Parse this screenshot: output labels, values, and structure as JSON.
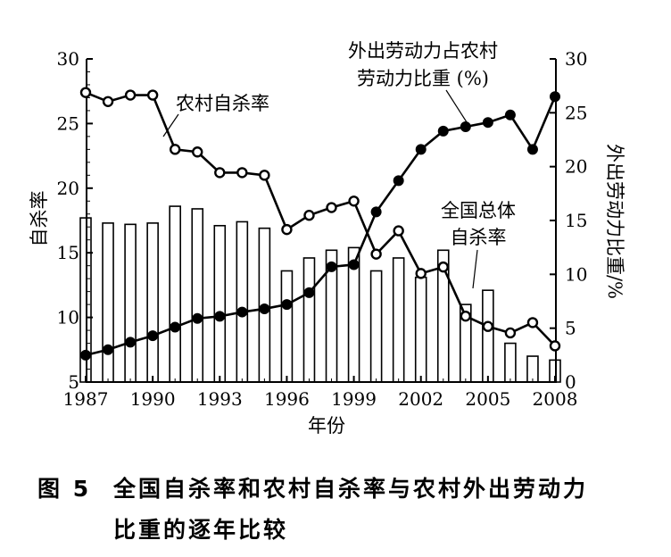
{
  "chart_data": {
    "type": "bar+line",
    "x": [
      1987,
      1988,
      1989,
      1990,
      1991,
      1992,
      1993,
      1994,
      1995,
      1996,
      1997,
      1998,
      1999,
      2000,
      2001,
      2002,
      2003,
      2004,
      2005,
      2006,
      2007,
      2008
    ],
    "x_ticks": [
      "1987",
      "1990",
      "1993",
      "1996",
      "1999",
      "2002",
      "2005",
      "2008"
    ],
    "xlabel": "年份",
    "ylabel_left": "自杀率",
    "ylabel_right": "外出劳动力比重/%",
    "ylim_left": [
      5,
      30
    ],
    "ylim_right": [
      0,
      30
    ],
    "yticks_left": [
      "5",
      "10",
      "15",
      "20",
      "25",
      "30"
    ],
    "yticks_right": [
      "0",
      "5",
      "10",
      "15",
      "20",
      "25",
      "30"
    ],
    "series": [
      {
        "name": "全国总体自杀率",
        "label_lines": [
          "全国总体",
          "自杀率"
        ],
        "kind": "bar",
        "axis": "left",
        "values": [
          17.7,
          17.3,
          17.2,
          17.3,
          18.6,
          18.4,
          17.1,
          17.4,
          16.9,
          13.6,
          14.6,
          15.2,
          15.4,
          13.6,
          14.6,
          13.1,
          15.2,
          11.0,
          12.1,
          8.0,
          7.0,
          6.7
        ]
      },
      {
        "name": "农村自杀率",
        "kind": "line",
        "marker": "open-circle",
        "axis": "left",
        "values": [
          27.4,
          26.7,
          27.2,
          27.2,
          23.0,
          22.8,
          21.2,
          21.2,
          21.0,
          16.8,
          17.9,
          18.5,
          19.0,
          14.9,
          16.7,
          13.4,
          13.9,
          10.1,
          9.3,
          8.8,
          9.6,
          7.8
        ]
      },
      {
        "name": "外出劳动力占农村劳动力比重 (%)",
        "label_lines": [
          "外出劳动力占农村",
          "劳动力比重 (%)"
        ],
        "kind": "line",
        "marker": "filled-circle",
        "axis": "right",
        "values": [
          2.5,
          3.0,
          3.7,
          4.3,
          5.1,
          5.9,
          6.1,
          6.5,
          6.8,
          7.2,
          8.3,
          10.7,
          10.9,
          15.8,
          18.7,
          21.6,
          23.3,
          23.7,
          24.1,
          24.8,
          21.6,
          26.5
        ]
      }
    ]
  },
  "caption": {
    "number": "图 5",
    "line1": "全国自杀率和农村自杀率与农村外出劳动力",
    "line2": "比重的逐年比较"
  }
}
